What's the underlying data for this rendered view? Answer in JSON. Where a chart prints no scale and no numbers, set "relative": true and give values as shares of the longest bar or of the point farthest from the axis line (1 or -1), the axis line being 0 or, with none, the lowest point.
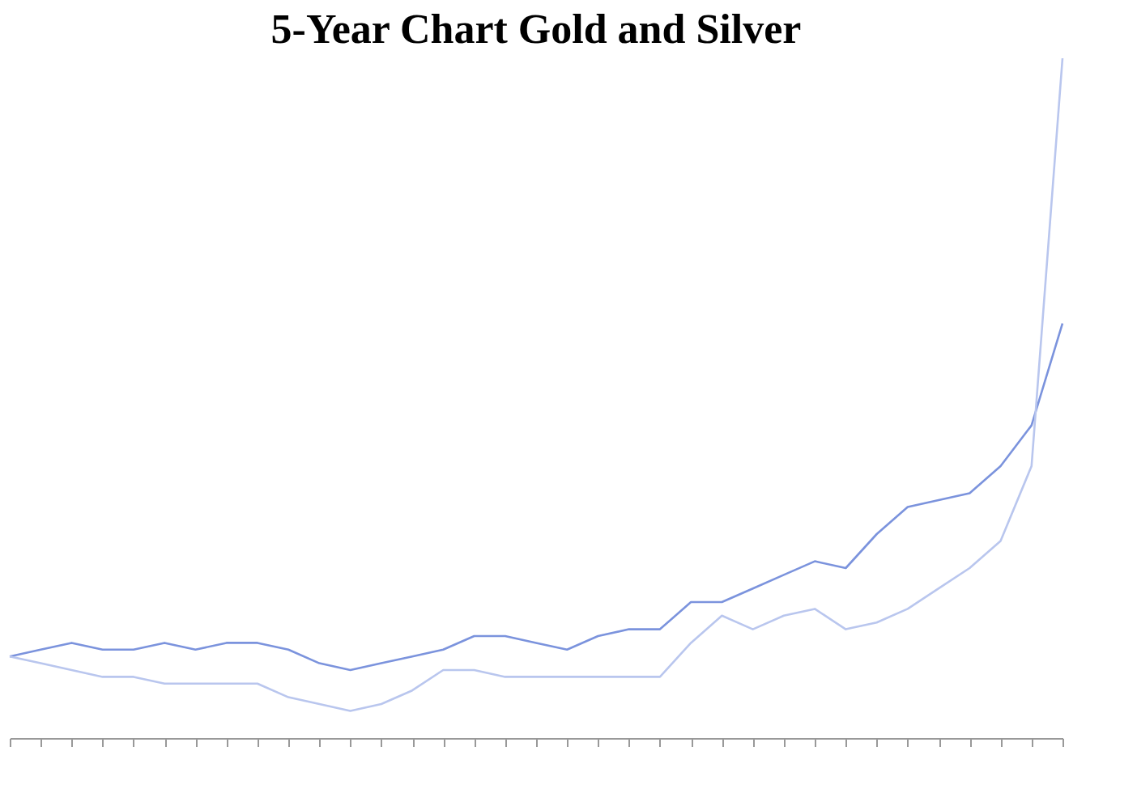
{
  "chart_data": {
    "type": "line",
    "title": "5-Year Chart Gold and Silver",
    "relative": true,
    "categories": [
      null,
      null,
      null,
      null,
      null,
      null,
      null,
      null,
      null,
      null,
      null,
      null,
      null,
      null,
      null,
      null,
      null,
      null,
      null,
      null,
      null,
      null,
      null,
      null,
      null,
      null,
      null,
      null,
      null,
      null,
      null,
      null,
      null,
      null,
      null
    ],
    "series": [
      {
        "color": "#7b93dd",
        "values": [
          0.12,
          0.13,
          0.14,
          0.13,
          0.13,
          0.14,
          0.13,
          0.14,
          0.14,
          0.13,
          0.11,
          0.1,
          0.11,
          0.12,
          0.13,
          0.15,
          0.15,
          0.14,
          0.13,
          0.15,
          0.16,
          0.16,
          0.2,
          0.2,
          0.22,
          0.24,
          0.26,
          0.25,
          0.3,
          0.34,
          0.35,
          0.36,
          0.4,
          0.46,
          0.61
        ]
      },
      {
        "color": "#b9c6ee",
        "values": [
          0.12,
          0.11,
          0.1,
          0.09,
          0.09,
          0.08,
          0.08,
          0.08,
          0.08,
          0.06,
          0.05,
          0.04,
          0.05,
          0.07,
          0.1,
          0.1,
          0.09,
          0.09,
          0.09,
          0.09,
          0.09,
          0.09,
          0.14,
          0.18,
          0.16,
          0.18,
          0.19,
          0.16,
          0.17,
          0.19,
          0.22,
          0.25,
          0.29,
          0.4,
          1
        ]
      }
    ]
  }
}
